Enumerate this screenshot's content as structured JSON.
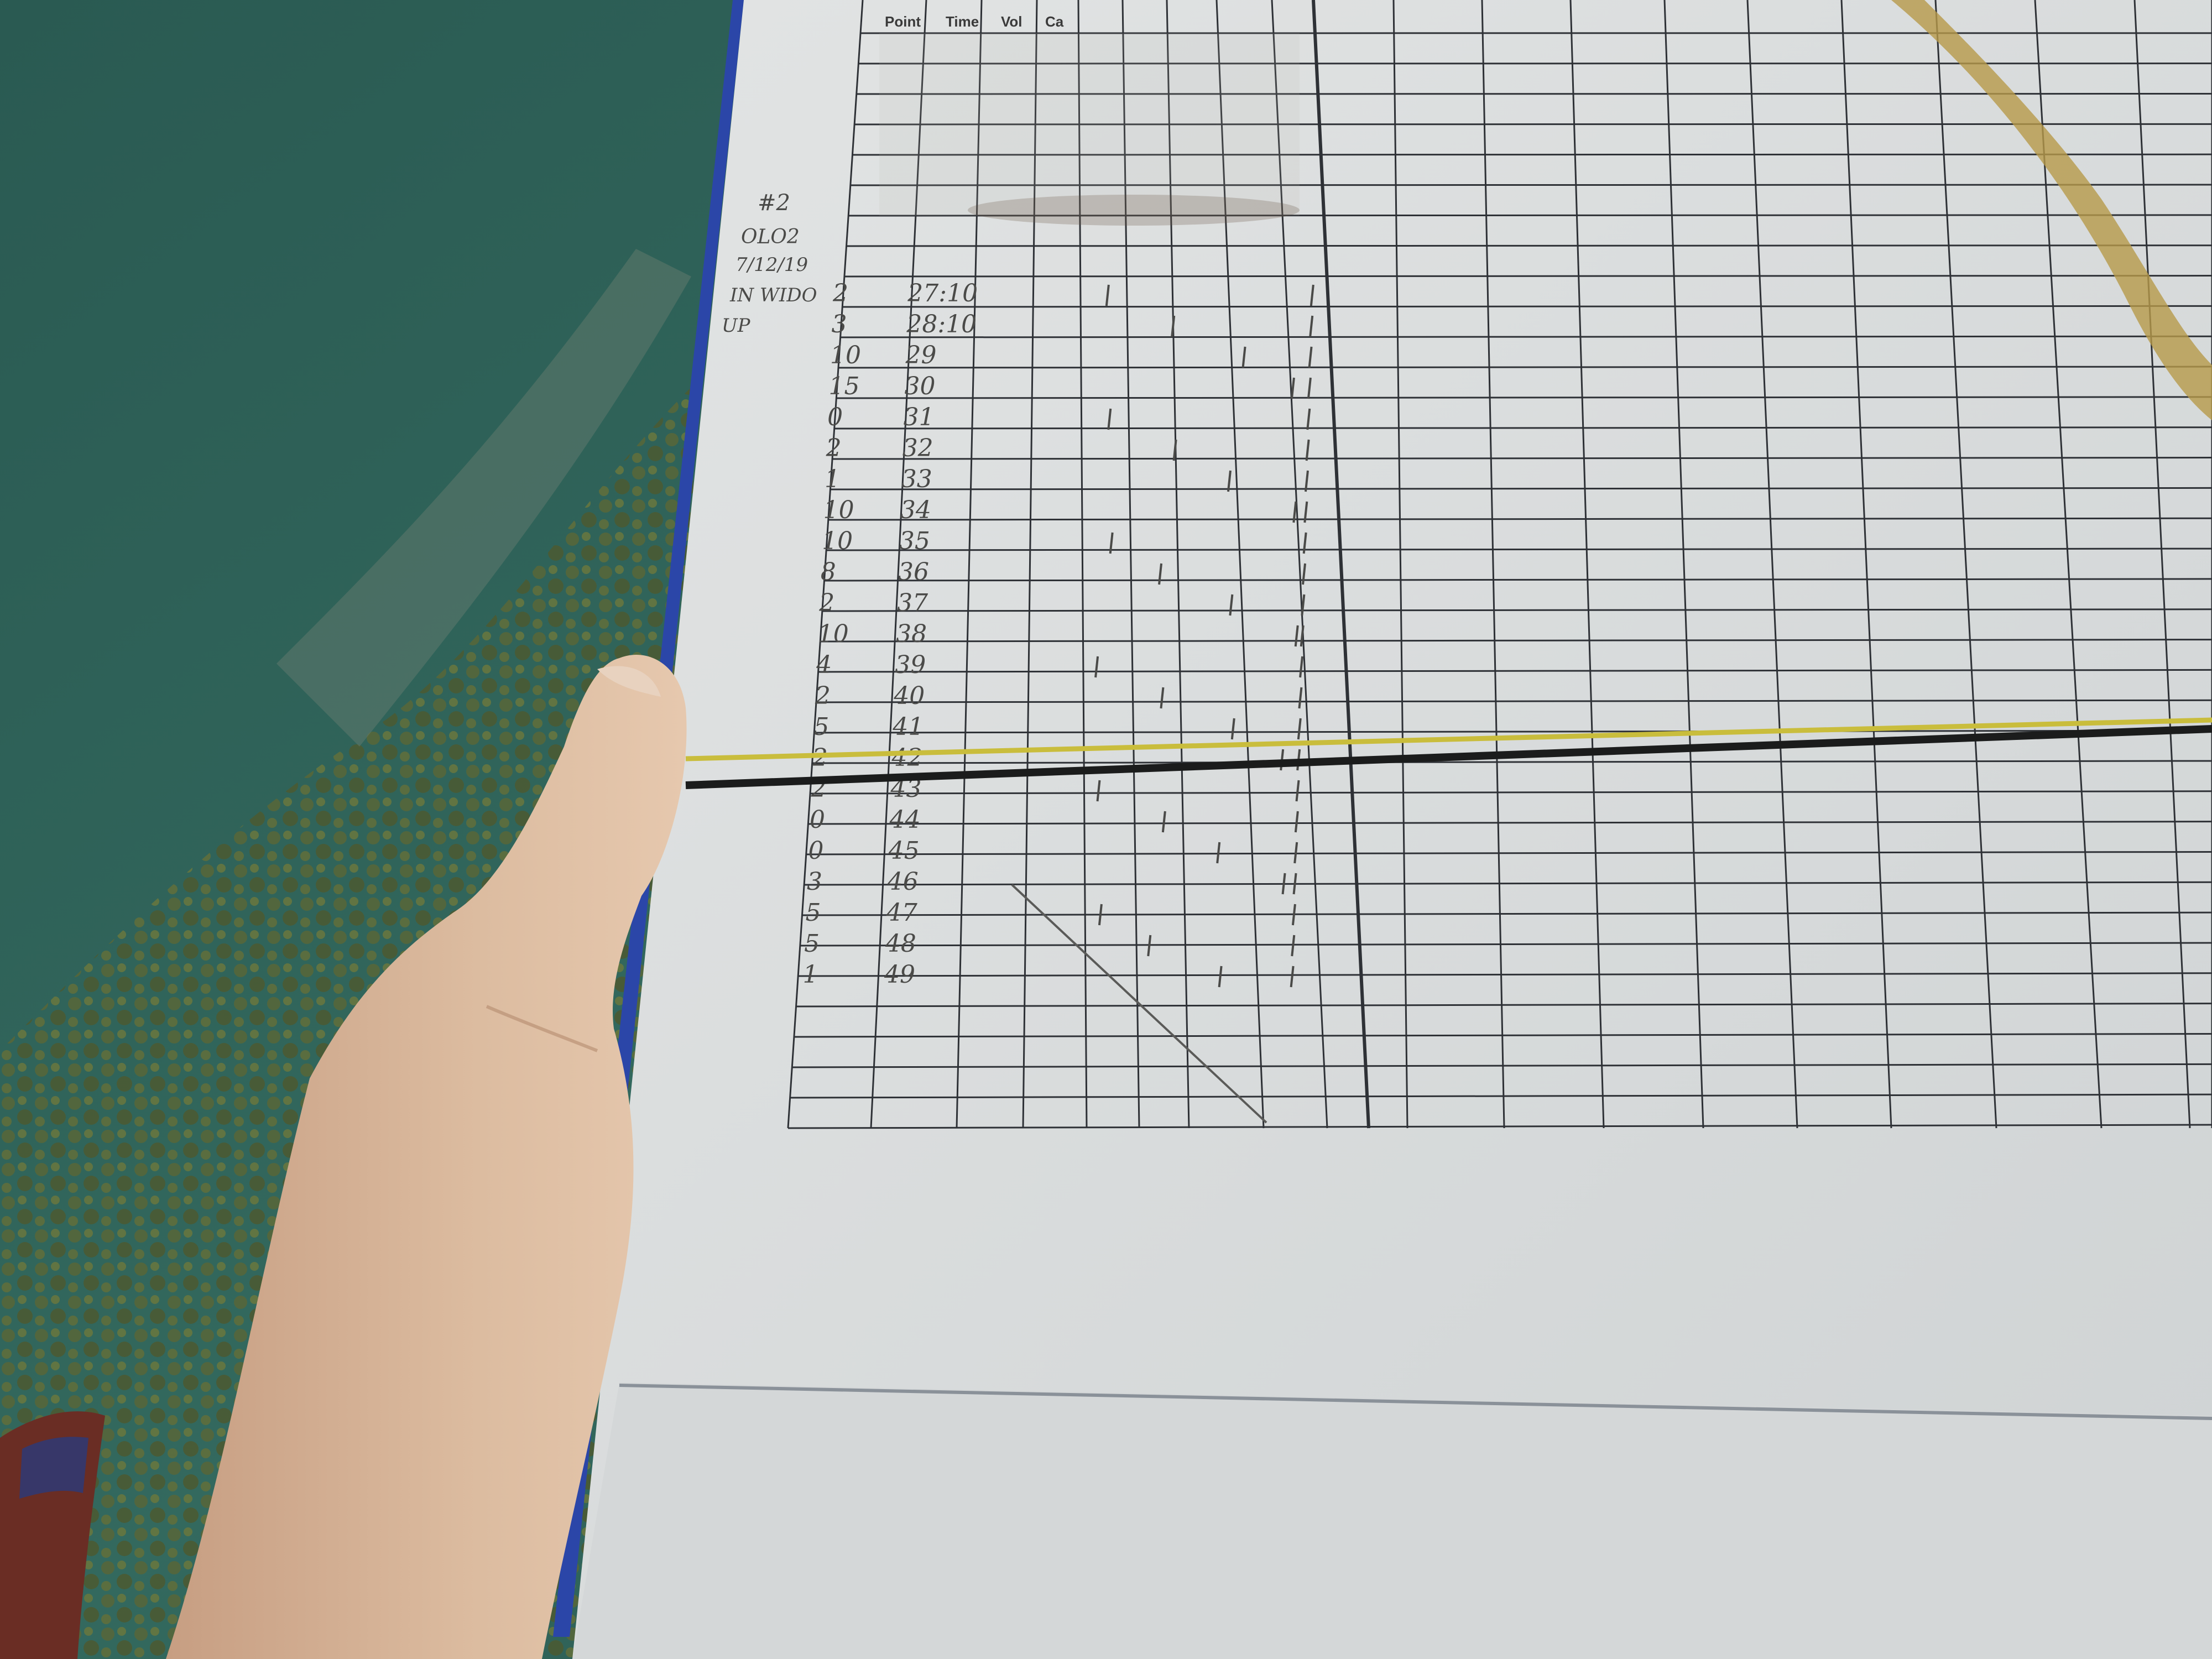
{
  "scene": {
    "description_colors": {
      "water": "#2f6257",
      "water_deep": "#27524b",
      "reef": "#5a6a3c",
      "paper": "#d9dcdd",
      "paper_shadow": "#c7cbcc",
      "grid_line": "#2e3136",
      "clipboard_edge": "#2b46a8",
      "transect_yellow": "#c9bd3c",
      "transect_black": "#1b1c1c",
      "hand_skin": "#d9b79a",
      "sleeve": "#6a2d24"
    }
  },
  "datasheet": {
    "header_cols": [
      "Point",
      "Time",
      "Vol",
      "Ca"
    ],
    "side_notes": [
      "#2",
      "OLO2",
      "7/12/19",
      "IN WIDO",
      "UP"
    ],
    "point_col": [
      "2",
      "3",
      "10",
      "15",
      "0",
      "2",
      "1",
      "10",
      "10",
      "8",
      "2",
      "10",
      "4",
      "2",
      "5",
      "2",
      "2",
      "0",
      "0",
      "3",
      "5",
      "5",
      "1"
    ],
    "time_col": [
      "27:10",
      "28:10",
      "29",
      "30",
      "31",
      "32",
      "33",
      "34",
      "35",
      "36",
      "37",
      "38",
      "39",
      "40",
      "41",
      "42",
      "43",
      "44",
      "45",
      "46",
      "47",
      "48",
      "49"
    ]
  }
}
